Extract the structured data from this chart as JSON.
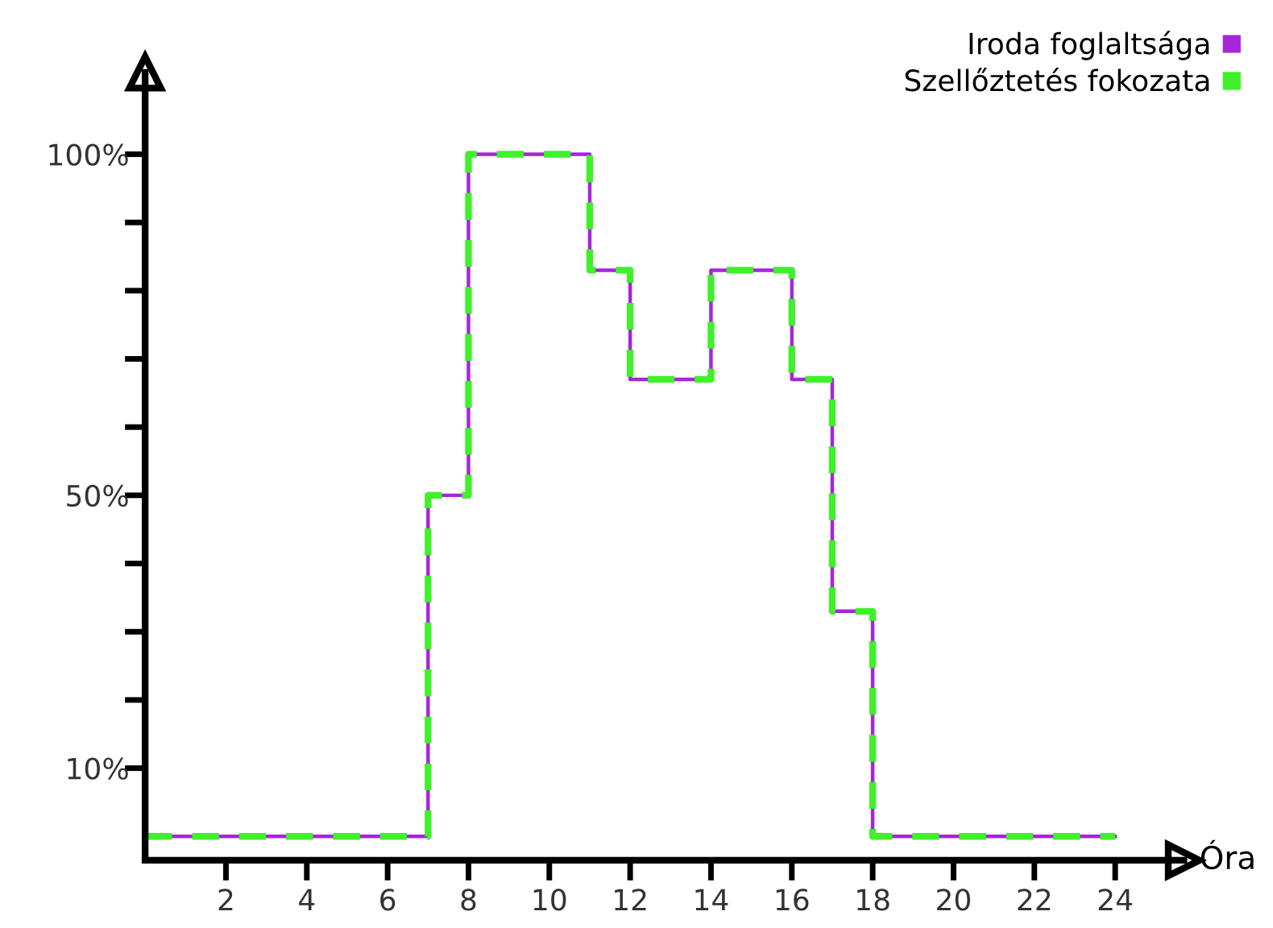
{
  "chart_data": {
    "type": "step",
    "xlabel": "Óra",
    "x": [
      0,
      7,
      8,
      11,
      12,
      14,
      16,
      17,
      18,
      24
    ],
    "series": [
      {
        "name": "Iroda foglaltsága",
        "color": "#a526d9",
        "values": [
          0,
          50,
          100,
          83,
          67,
          83,
          67,
          33,
          0,
          0
        ],
        "line_style": "solid"
      },
      {
        "name": "Szellőztetés fokozata",
        "color": "#3ff02a",
        "values": [
          0,
          50,
          100,
          83,
          67,
          83,
          67,
          33,
          0,
          0
        ],
        "line_style": "dashed"
      }
    ],
    "xlim": [
      0,
      25.7
    ],
    "ylim": [
      -3.5,
      112
    ],
    "xticks": [
      2,
      4,
      6,
      8,
      10,
      12,
      14,
      16,
      18,
      20,
      22,
      24
    ],
    "yticks": [
      {
        "value": 10,
        "label": "10%"
      },
      {
        "value": 20,
        "label": null
      },
      {
        "value": 30,
        "label": null
      },
      {
        "value": 40,
        "label": null
      },
      {
        "value": 50,
        "label": "50%"
      },
      {
        "value": 60,
        "label": null
      },
      {
        "value": 70,
        "label": null
      },
      {
        "value": 80,
        "label": null
      },
      {
        "value": 90,
        "label": null
      },
      {
        "value": 100,
        "label": "100%"
      }
    ],
    "grid": false,
    "legend": "top right"
  }
}
